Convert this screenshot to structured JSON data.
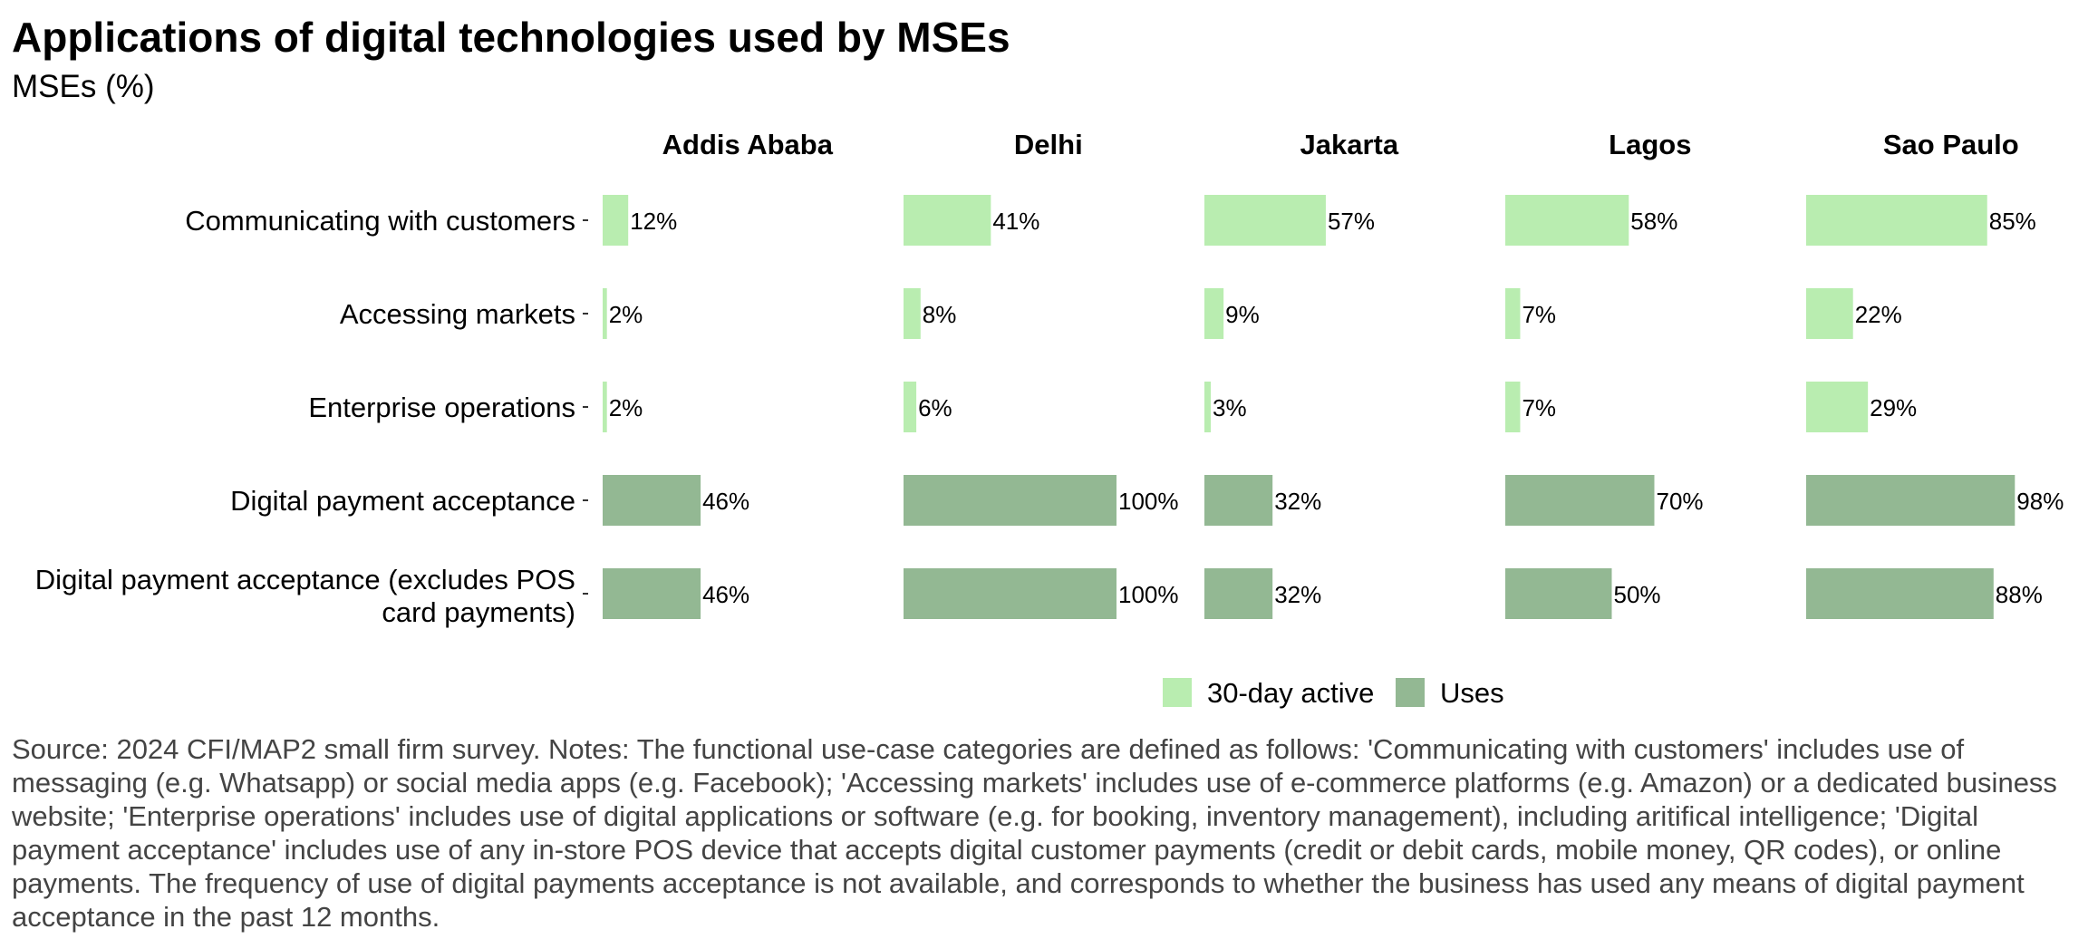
{
  "chart_data": {
    "type": "bar",
    "orientation": "horizontal",
    "title": "Applications of digital technologies used by MSEs",
    "subtitle": "MSEs (%)",
    "facets": [
      "Addis Ababa",
      "Delhi",
      "Jakarta",
      "Lagos",
      "Sao Paulo"
    ],
    "categories": [
      "Communicating with customers",
      "Accessing markets",
      "Enterprise operations",
      "Digital payment acceptance",
      "Digital payment acceptance (excludes POS card payments)"
    ],
    "category_series": [
      "30-day active",
      "30-day active",
      "30-day active",
      "Uses",
      "Uses"
    ],
    "values": {
      "Addis Ababa": [
        12,
        2,
        2,
        46,
        46
      ],
      "Delhi": [
        41,
        8,
        6,
        100,
        100
      ],
      "Jakarta": [
        57,
        9,
        3,
        32,
        32
      ],
      "Lagos": [
        58,
        7,
        7,
        70,
        50
      ],
      "Sao Paulo": [
        85,
        22,
        29,
        98,
        88
      ]
    },
    "value_suffix": "%",
    "xlim": [
      0,
      100
    ],
    "grid": false,
    "legend": {
      "position": "bottom-right",
      "entries": [
        {
          "name": "30-day active",
          "color": "#b9edb0"
        },
        {
          "name": "Uses",
          "color": "#93b893"
        }
      ]
    }
  },
  "footnote": "Source: 2024 CFI/MAP2 small firm survey. Notes: The functional use-case categories are defined as follows: 'Communicating with customers' includes use of messaging (e.g. Whatsapp) or social media apps (e.g. Facebook); 'Accessing markets' includes use of e-commerce platforms (e.g. Amazon) or a dedicated business website; 'Enterprise operations' includes use of digital applications or software (e.g. for booking, inventory management), including aritifical intelligence; 'Digital payment acceptance' includes use of any in-store POS device that accepts digital customer payments (credit or debit cards, mobile money, QR codes), or online payments. The frequency of use of digital payments acceptance is not available, and corresponds to whether the business has used any means of digital payment acceptance in the past 12 months."
}
